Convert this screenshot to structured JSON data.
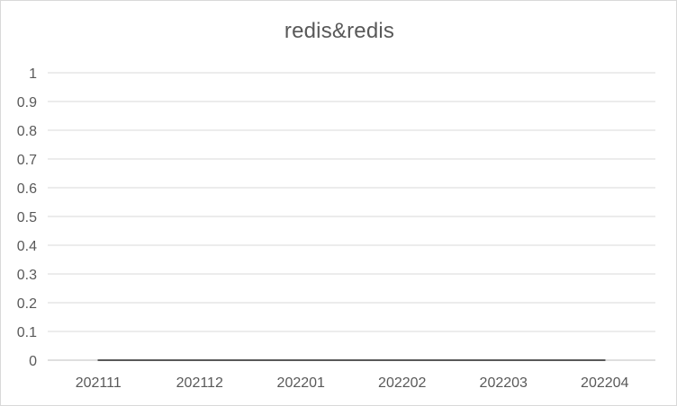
{
  "chart_data": {
    "type": "line",
    "title": "redis&redis",
    "categories": [
      "202111",
      "202112",
      "202201",
      "202202",
      "202203",
      "202204"
    ],
    "series": [
      {
        "values": [
          0,
          0,
          0,
          0,
          0,
          0
        ]
      }
    ],
    "ylim": [
      0,
      1
    ],
    "yticks": [
      "0",
      "0.1",
      "0.2",
      "0.3",
      "0.4",
      "0.5",
      "0.6",
      "0.7",
      "0.8",
      "0.9",
      "1"
    ],
    "grid": true,
    "legend": "none",
    "colors": {
      "series": "#595959",
      "grid": "#d9d9d9",
      "axis": "#bfbfbf",
      "text": "#595959"
    }
  }
}
